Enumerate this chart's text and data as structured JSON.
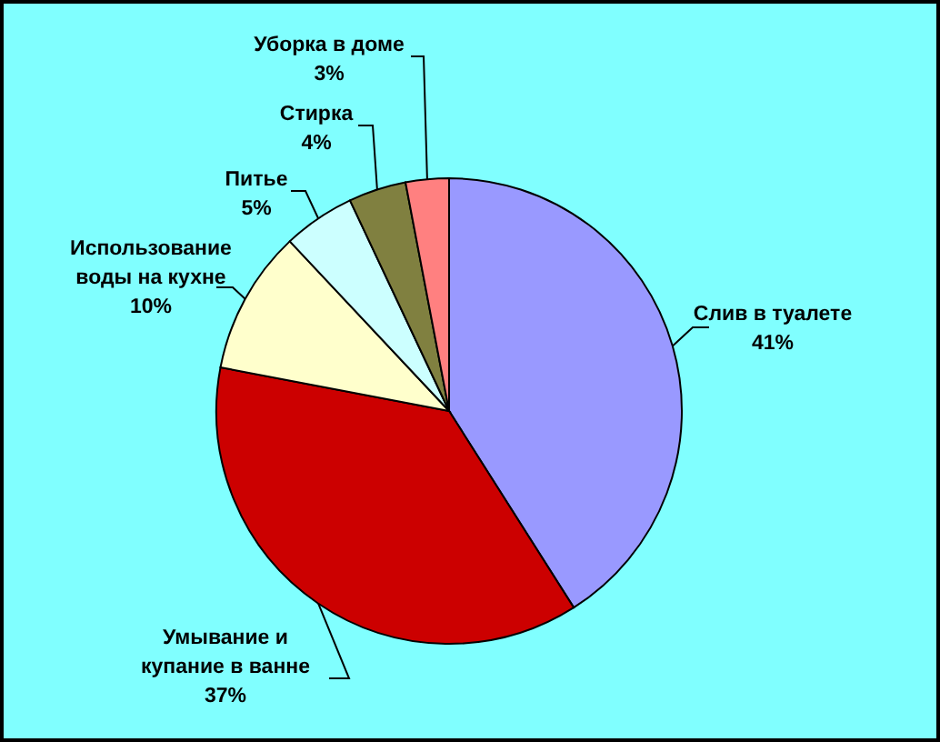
{
  "chart_data": {
    "type": "pie",
    "categories": [
      "Слив в туалете",
      "Умывание и купание в ванне",
      "Использование воды на кухне",
      "Питье",
      "Стирка",
      "Уборка в доме"
    ],
    "values": [
      41,
      37,
      10,
      5,
      4,
      3
    ],
    "colors": [
      "#9999ff",
      "#cc0000",
      "#ffffcc",
      "#ccffff",
      "#808040",
      "#ff8080"
    ],
    "value_labels": [
      "41%",
      "37%",
      "10%",
      "5%",
      "4%",
      "3%"
    ]
  }
}
